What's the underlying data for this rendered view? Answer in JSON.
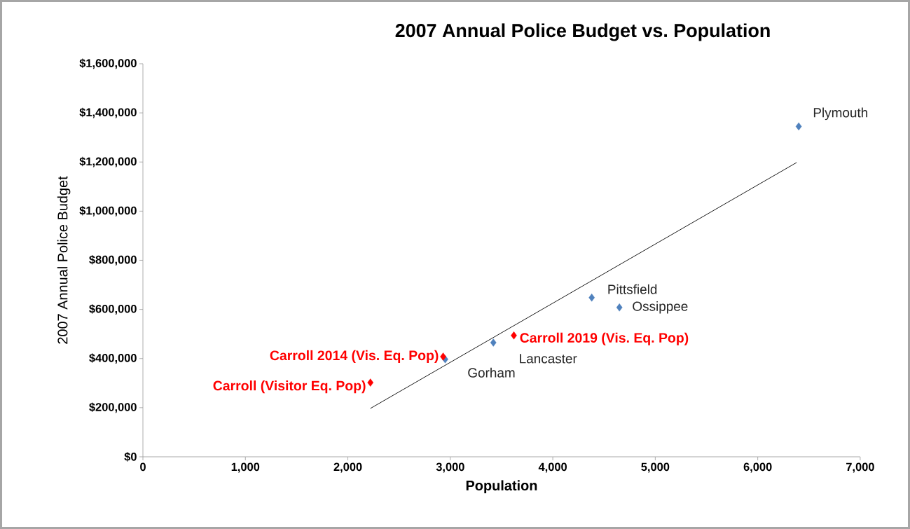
{
  "chart_data": {
    "type": "scatter",
    "title": "2007 Annual Police Budget vs. Population",
    "xlabel": "Population",
    "ylabel": "2007 Annual Police Budget",
    "xlim": [
      0,
      7000
    ],
    "ylim": [
      0,
      1600000
    ],
    "xticks": [
      0,
      {
        "value": 1000,
        "label": "1,000"
      },
      {
        "value": 2000,
        "label": "2,000"
      },
      {
        "value": 3000,
        "label": "3,000"
      },
      {
        "value": 4000,
        "label": "4,000"
      },
      {
        "value": 5000,
        "label": "5,000"
      },
      {
        "value": 6000,
        "label": "6,000"
      },
      {
        "value": 7000,
        "label": "7,000"
      }
    ],
    "yticks": [
      {
        "value": 0,
        "label": "$0"
      },
      {
        "value": 200000,
        "label": "$200,000"
      },
      {
        "value": 400000,
        "label": "$400,000"
      },
      {
        "value": 600000,
        "label": "$600,000"
      },
      {
        "value": 800000,
        "label": "$800,000"
      },
      {
        "value": 1000000,
        "label": "$1,000,000"
      },
      {
        "value": 1200000,
        "label": "$1,200,000"
      },
      {
        "value": 1400000,
        "label": "$1,400,000"
      },
      {
        "value": 1600000,
        "label": "$1,600,000"
      }
    ],
    "grid": false,
    "legend": false,
    "marker": "diamond",
    "series": [
      {
        "color": "#4f81bd",
        "x": [
          6400,
          4380,
          4650,
          3420,
          2950
        ],
        "values": [
          1345000,
          648000,
          608000,
          465000,
          397000
        ]
      },
      {
        "color": "#ff0000",
        "x": [
          3620,
          2930,
          2220
        ],
        "values": [
          494000,
          408000,
          302000
        ]
      },
      {
        "type": "line",
        "color": "#000000",
        "marker": "none",
        "line_style": "solid",
        "x": [
          2220,
          6380
        ],
        "values": [
          197000,
          1198000
        ]
      }
    ],
    "annotations": [
      {
        "text": "Plymouth",
        "x": 6400,
        "y": 1345000
      },
      {
        "text": "Pittsfield",
        "x": 4380,
        "y": 648000
      },
      {
        "text": "Ossippee",
        "x": 4650,
        "y": 608000
      },
      {
        "text": "Lancaster",
        "x": 3420,
        "y": 465000
      },
      {
        "text": "Gorham",
        "x": 2950,
        "y": 397000
      },
      {
        "text": "Carroll 2019 (Vis. Eq. Pop)",
        "x": 3620,
        "y": 494000
      },
      {
        "text": "Carroll 2014 (Vis. Eq. Pop)",
        "x": 2930,
        "y": 408000
      },
      {
        "text": "Carroll (Visitor Eq. Pop)",
        "x": 2220,
        "y": 302000
      }
    ]
  }
}
